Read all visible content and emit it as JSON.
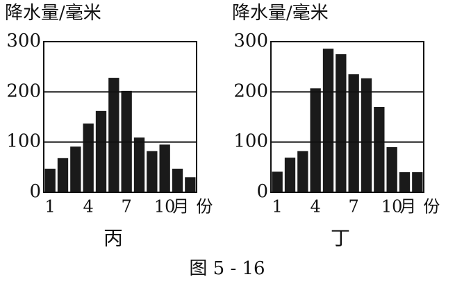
{
  "chart_data": [
    {
      "type": "bar",
      "title": "丙",
      "ylabel": "降水量/毫米",
      "xlabel": "月份",
      "categories": [
        "1",
        null,
        null,
        "4",
        null,
        null,
        "7",
        null,
        null,
        "10",
        null,
        null
      ],
      "values": [
        47,
        68,
        91,
        137,
        162,
        228,
        202,
        109,
        82,
        95,
        47,
        30
      ],
      "color": "#1a1a1a",
      "ylim": [
        0,
        300
      ],
      "yticks": [
        0,
        100,
        200,
        300
      ],
      "grid": true
    },
    {
      "type": "bar",
      "title": "丁",
      "ylabel": "降水量/毫米",
      "xlabel": "月份",
      "categories": [
        "1",
        null,
        null,
        "4",
        null,
        null,
        "7",
        null,
        null,
        "10",
        null,
        null
      ],
      "values": [
        41,
        69,
        82,
        207,
        286,
        275,
        235,
        227,
        170,
        90,
        40,
        40
      ],
      "color": "#1a1a1a",
      "ylim": [
        0,
        300
      ],
      "yticks": [
        0,
        100,
        200,
        300
      ],
      "grid": true
    }
  ],
  "caption": "图 5 - 16"
}
